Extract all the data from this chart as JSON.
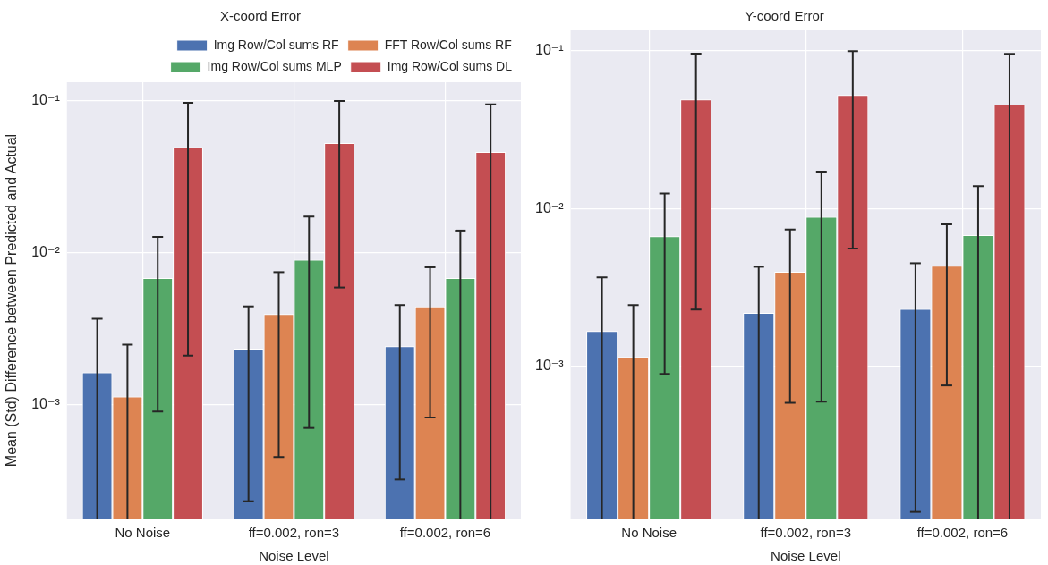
{
  "chart_data": [
    {
      "type": "bar",
      "title": "X-coord Error",
      "xlabel": "Noise Level",
      "ylabel": "Mean (Std) Difference between Predicted and Actual",
      "categories": [
        "No Noise",
        "ff=0.002, ron=3",
        "ff=0.002, ron=6"
      ],
      "log": "y",
      "ylim": [
        0.000177,
        0.133
      ],
      "yticks": [
        {
          "value": 0.001,
          "label": "10⁻³"
        },
        {
          "value": 0.01,
          "label": "10⁻²"
        },
        {
          "value": 0.1,
          "label": "10⁻¹"
        }
      ],
      "grid": true,
      "legend": "top right",
      "series": [
        {
          "name": "Img Row/Col sums RF",
          "color": "#4c72b0",
          "values": [
            0.00163,
            0.00233,
            0.00242
          ],
          "errors": [
            [
              0.000177,
              0.00367
            ],
            0.0021,
            0.0021
          ]
        },
        {
          "name": "FFT Row/Col sums RF",
          "color": "#dd8452",
          "values": [
            0.00113,
            0.00395,
            0.00442
          ],
          "errors": [
            [
              0.000177,
              0.00248
            ],
            0.0035,
            0.0036
          ]
        },
        {
          "name": "Img Row/Col sums MLP",
          "color": "#55a868",
          "values": [
            0.0068,
            0.009,
            0.0068
          ],
          "errors": [
            0.0059,
            0.0083,
            [
              0.000177,
              0.014
            ]
          ]
        },
        {
          "name": "Img Row/Col sums DL",
          "color": "#c44e52",
          "values": [
            0.0497,
            0.0529,
            0.0461
          ],
          "errors": [
            0.0476,
            0.047,
            [
              0.000177,
              0.0951
            ]
          ]
        }
      ]
    },
    {
      "type": "bar",
      "title": "Y-coord Error",
      "xlabel": "Noise Level",
      "categories": [
        "No Noise",
        "ff=0.002, ron=3",
        "ff=0.002, ron=6"
      ],
      "log": "y",
      "ylim": [
        0.000109,
        0.135
      ],
      "yticks": [
        {
          "value": 0.001,
          "label": "10⁻³"
        },
        {
          "value": 0.01,
          "label": "10⁻²"
        },
        {
          "value": 0.1,
          "label": "10⁻¹"
        }
      ],
      "grid": true,
      "series": [
        {
          "color": "#4c72b0",
          "values": [
            0.00168,
            0.00219,
            0.00232
          ],
          "errors": [
            [
              0.000109,
              0.00368
            ],
            0.0021,
            0.0022
          ]
        },
        {
          "color": "#dd8452",
          "values": [
            0.00115,
            0.00399,
            0.00436
          ],
          "errors": [
            [
              0.000109,
              0.00245
            ],
            0.0034,
            0.0036
          ]
        },
        {
          "color": "#55a868",
          "values": [
            0.0067,
            0.0089,
            0.0068
          ],
          "errors": [
            0.0058,
            0.0083,
            [
              0.000109,
              0.0139
            ]
          ]
        },
        {
          "color": "#c44e52",
          "values": [
            0.0493,
            0.0526,
            0.0458
          ],
          "errors": [
            0.047,
            0.047,
            [
              0.000109,
              0.0958
            ]
          ]
        }
      ]
    }
  ]
}
